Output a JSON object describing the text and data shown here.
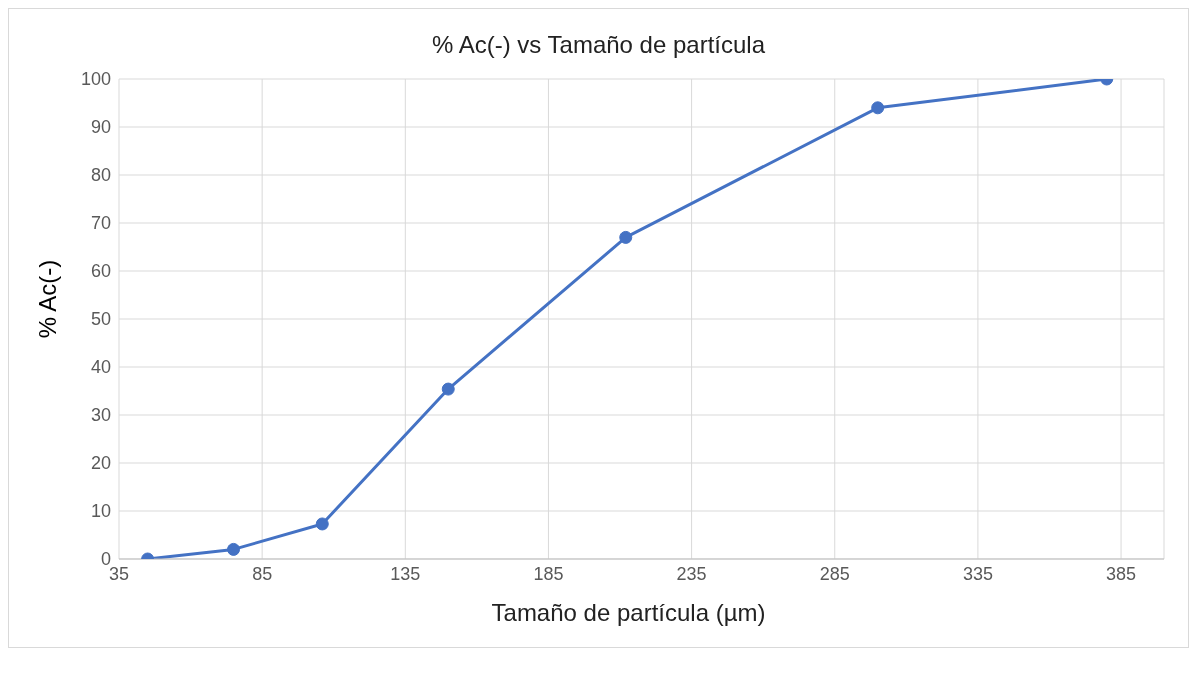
{
  "chart_data": {
    "type": "line",
    "title": "% Ac(-) vs Tamaño de partícula",
    "xlabel": "Tamaño de partícula (µm)",
    "ylabel": "% Ac(-)",
    "x": [
      45,
      75,
      106,
      150,
      212,
      300,
      380
    ],
    "series": [
      {
        "color": "#4472c4",
        "values": [
          0,
          2.0,
          7.3,
          35.4,
          67.0,
          94.0,
          100
        ]
      }
    ],
    "xlim": [
      35,
      400
    ],
    "xticks": [
      35,
      85,
      135,
      185,
      235,
      285,
      335,
      385
    ],
    "ylim": [
      0,
      100
    ],
    "yticks": [
      0,
      10,
      20,
      30,
      40,
      50,
      60,
      70,
      80,
      90,
      100
    ],
    "grid": true,
    "marker": "circle",
    "line_style": "solid",
    "legend": false
  }
}
